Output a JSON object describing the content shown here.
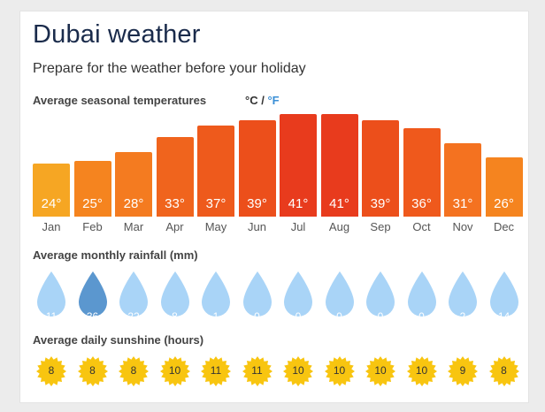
{
  "header": {
    "title": "Dubai weather",
    "subtitle": "Prepare for the weather before your holiday"
  },
  "temperature": {
    "label": "Average seasonal temperatures",
    "unit_c": "°C",
    "unit_sep": " / ",
    "unit_f": "°F",
    "selected_unit": "C",
    "months": [
      "Jan",
      "Feb",
      "Mar",
      "Apr",
      "May",
      "Jun",
      "Jul",
      "Aug",
      "Sep",
      "Oct",
      "Nov",
      "Dec"
    ],
    "values_c": [
      24,
      25,
      28,
      33,
      37,
      39,
      41,
      41,
      39,
      36,
      31,
      26
    ],
    "value_labels": [
      "24°",
      "25°",
      "28°",
      "33°",
      "37°",
      "39°",
      "41°",
      "41°",
      "39°",
      "36°",
      "31°",
      "26°"
    ],
    "colors": [
      "#f6a623",
      "#f5841f",
      "#f47b20",
      "#f0641d",
      "#ee5a1c",
      "#ec4f1b",
      "#e83b1d",
      "#e83b1d",
      "#ec4f1b",
      "#ef591c",
      "#f47220",
      "#f5841f"
    ]
  },
  "rainfall": {
    "label": "Average monthly rainfall (mm)",
    "values": [
      "11",
      "36",
      "22",
      "8",
      "1",
      "0",
      "0",
      "0",
      "0",
      "0",
      "2",
      "14"
    ],
    "highlight_index": 1,
    "color": "#a9d4f7",
    "highlight_color": "#5b97cf"
  },
  "sunshine": {
    "label": "Average daily sunshine (hours)",
    "values": [
      "8",
      "8",
      "8",
      "10",
      "11",
      "11",
      "10",
      "10",
      "10",
      "10",
      "9",
      "8"
    ],
    "color": "#f8c510"
  }
}
